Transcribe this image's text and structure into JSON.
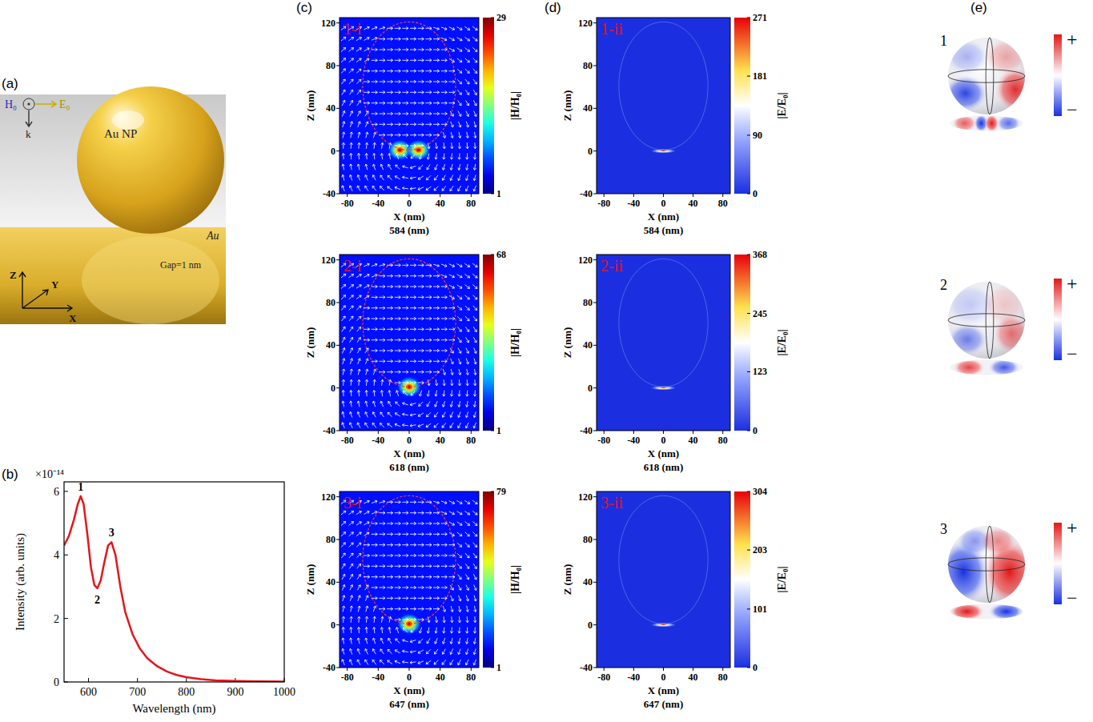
{
  "figure": {
    "panel_labels": [
      "(a)",
      "(b)",
      "(c)",
      "(d)",
      "(e)"
    ]
  },
  "schematic": {
    "h_label": "H₀",
    "e_label": "E₀",
    "k_label": "k",
    "particle_label": "Au NP",
    "substrate_label": "Au",
    "gap_label": "Gap=1 nm",
    "axis_labels": [
      "Z",
      "Y",
      "X"
    ]
  },
  "chart_data": [
    {
      "type": "line",
      "xlabel": "Wavelength  (nm)",
      "ylabel": "Intensity  (arb. units)",
      "y_scale_label": "×10⁻¹⁴",
      "x": [
        550,
        560,
        570,
        578,
        584,
        590,
        598,
        605,
        612,
        618,
        625,
        632,
        640,
        647,
        655,
        665,
        675,
        690,
        705,
        720,
        740,
        760,
        780,
        800,
        830,
        860,
        900,
        950,
        1000
      ],
      "values": [
        4.3,
        4.6,
        5.1,
        5.6,
        5.85,
        5.6,
        4.6,
        3.6,
        3.05,
        2.95,
        3.2,
        3.75,
        4.3,
        4.4,
        4.0,
        3.0,
        2.2,
        1.5,
        1.05,
        0.75,
        0.5,
        0.33,
        0.22,
        0.15,
        0.09,
        0.05,
        0.03,
        0.02,
        0.01
      ],
      "color": "#e3161b",
      "xlim": [
        550,
        1000
      ],
      "xticks": [
        600,
        700,
        800,
        900,
        1000
      ],
      "ylim": [
        0,
        6.3
      ],
      "yticks": [
        0,
        2,
        4,
        6
      ],
      "annotations": [
        {
          "text": "1",
          "x": 584,
          "y": 5.85,
          "position": "above"
        },
        {
          "text": "2",
          "x": 618,
          "y": 2.95,
          "position": "below"
        },
        {
          "text": "3",
          "x": 647,
          "y": 4.4,
          "position": "above"
        }
      ]
    },
    {
      "type": "field_map",
      "panel_label": "1-i",
      "xlabel": "X (nm)",
      "ylabel": "Z (nm)",
      "caption": "584 (nm)",
      "xlim": [
        -90,
        90
      ],
      "ylim": [
        -40,
        125
      ],
      "xticks": [
        -80,
        -40,
        0,
        40,
        80
      ],
      "yticks": [
        -40,
        0,
        40,
        80,
        120
      ],
      "colorbar_label": "|H/H₀|",
      "colorbar_range": [
        1,
        29
      ],
      "colorbar_ticks": [
        1,
        29
      ],
      "sphere": {
        "x": 0,
        "z": 61,
        "radius": 60
      },
      "hotspots": [
        {
          "x": -12,
          "z": 1,
          "value": 29
        },
        {
          "x": 12,
          "z": 1,
          "value": 29
        }
      ]
    },
    {
      "type": "field_map",
      "panel_label": "2-i",
      "xlabel": "X (nm)",
      "ylabel": "Z (nm)",
      "caption": "618 (nm)",
      "xlim": [
        -90,
        90
      ],
      "ylim": [
        -40,
        125
      ],
      "xticks": [
        -80,
        -40,
        0,
        40,
        80
      ],
      "yticks": [
        -40,
        0,
        40,
        80,
        120
      ],
      "colorbar_label": "|H/H₀|",
      "colorbar_range": [
        1,
        68
      ],
      "colorbar_ticks": [
        1,
        68
      ],
      "sphere": {
        "x": 0,
        "z": 61,
        "radius": 60
      },
      "hotspots": [
        {
          "x": 0,
          "z": 1,
          "value": 68
        }
      ]
    },
    {
      "type": "field_map",
      "panel_label": "3-i",
      "xlabel": "X (nm)",
      "ylabel": "Z (nm)",
      "caption": "647 (nm)",
      "xlim": [
        -90,
        90
      ],
      "ylim": [
        -40,
        125
      ],
      "xticks": [
        -80,
        -40,
        0,
        40,
        80
      ],
      "yticks": [
        -40,
        0,
        40,
        80,
        120
      ],
      "colorbar_label": "|H/H₀|",
      "colorbar_range": [
        1,
        79
      ],
      "colorbar_ticks": [
        1,
        79
      ],
      "sphere": {
        "x": 0,
        "z": 61,
        "radius": 60
      },
      "hotspots": [
        {
          "x": 0,
          "z": 1,
          "value": 79
        }
      ]
    },
    {
      "type": "field_map",
      "panel_label": "1-ii",
      "xlabel": "X (nm)",
      "ylabel": "Z (nm)",
      "caption": "584 (nm)",
      "xlim": [
        -90,
        90
      ],
      "ylim": [
        -40,
        125
      ],
      "xticks": [
        -80,
        -40,
        0,
        40,
        80
      ],
      "yticks": [
        -40,
        0,
        40,
        80,
        120
      ],
      "colorbar_label": "|E/E₀|",
      "colorbar_range": [
        0,
        271
      ],
      "colorbar_ticks": [
        0,
        90,
        181,
        271
      ],
      "sphere": {
        "x": 0,
        "z": 61,
        "radius": 60
      },
      "hotspots": [
        {
          "x": 0,
          "z": 0,
          "value": 271
        }
      ]
    },
    {
      "type": "field_map",
      "panel_label": "2-ii",
      "xlabel": "X (nm)",
      "ylabel": "Z (nm)",
      "caption": "618 (nm)",
      "xlim": [
        -90,
        90
      ],
      "ylim": [
        -40,
        125
      ],
      "xticks": [
        -80,
        -40,
        0,
        40,
        80
      ],
      "yticks": [
        -40,
        0,
        40,
        80,
        120
      ],
      "colorbar_label": "|E/E₀|",
      "colorbar_range": [
        0,
        368
      ],
      "colorbar_ticks": [
        0,
        123,
        245,
        368
      ],
      "sphere": {
        "x": 0,
        "z": 61,
        "radius": 60
      },
      "hotspots": [
        {
          "x": 0,
          "z": 0,
          "value": 368
        }
      ]
    },
    {
      "type": "field_map",
      "panel_label": "3-ii",
      "xlabel": "X (nm)",
      "ylabel": "Z (nm)",
      "caption": "647 (nm)",
      "xlim": [
        -90,
        90
      ],
      "ylim": [
        -40,
        125
      ],
      "xticks": [
        -80,
        -40,
        0,
        40,
        80
      ],
      "yticks": [
        -40,
        0,
        40,
        80,
        120
      ],
      "colorbar_label": "|E/E₀|",
      "colorbar_range": [
        0,
        304
      ],
      "colorbar_ticks": [
        0,
        101,
        203,
        304
      ],
      "sphere": {
        "x": 0,
        "z": 61,
        "radius": 60
      },
      "hotspots": [
        {
          "x": 0,
          "z": 0,
          "value": 304
        }
      ]
    }
  ],
  "charge_maps": [
    {
      "label": "1",
      "plus": "+",
      "minus": "−"
    },
    {
      "label": "2",
      "plus": "+",
      "minus": "−"
    },
    {
      "label": "3",
      "plus": "+",
      "minus": "−"
    }
  ]
}
